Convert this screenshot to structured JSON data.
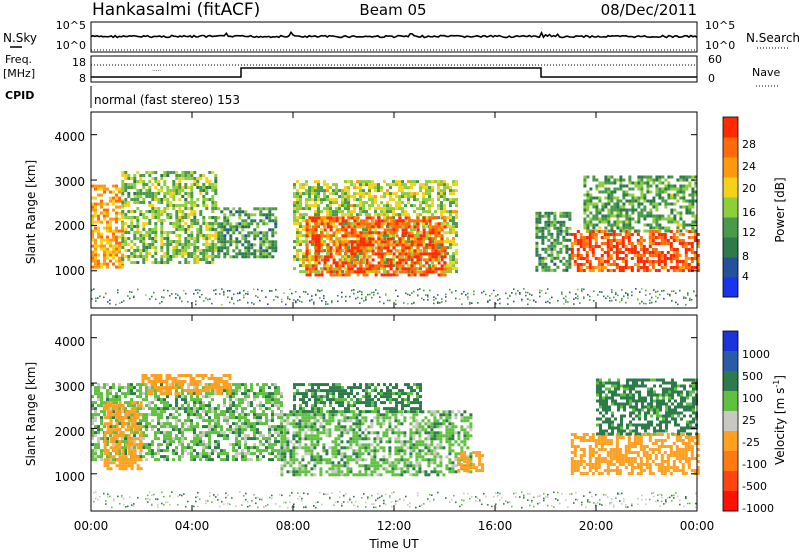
{
  "header": {
    "station": "Hankasalmi (fitACF)",
    "beam": "Beam 05",
    "date": "08/Dec/2011"
  },
  "aux": {
    "nsky_label": "N.Sky",
    "nsearch_label": "N.Search",
    "noise_ticks_left": [
      "10^5",
      "10^0"
    ],
    "noise_ticks_right": [
      "10^5",
      "10^0"
    ],
    "freq_label_1": "Freq.",
    "freq_label_2": "[MHz]",
    "freq_ticks": [
      "18",
      "8"
    ],
    "nave_ticks": [
      "60",
      "0"
    ],
    "nave_label": "Nave",
    "cpid_label": "CPID",
    "cpid_text": "normal (fast stereo) 153"
  },
  "axes": {
    "xlabel": "Time UT",
    "x_ticks": [
      "00:00",
      "04:00",
      "08:00",
      "12:00",
      "16:00",
      "20:00",
      "00:00"
    ],
    "ylabel": "Slant Range [km]",
    "y_ticks": [
      "1000",
      "2000",
      "3000",
      "4000"
    ]
  },
  "colorbars": {
    "power": {
      "label": "Power [dB]",
      "ticks": [
        "4",
        "8",
        "12",
        "16",
        "20",
        "24",
        "28"
      ]
    },
    "velocity": {
      "label_main": "Velocity [m s",
      "label_sup": "-1",
      "label_end": "]",
      "ticks": [
        "1000",
        "500",
        "100",
        "25",
        "-25",
        "-100",
        "-500",
        "-1000"
      ]
    }
  },
  "colors": {
    "power_scale": [
      "#1a33ee",
      "#24509c",
      "#2d7a4a",
      "#4a9a4a",
      "#8ccf3a",
      "#f4d21a",
      "#ff9a10",
      "#ff6a0a",
      "#ff2a00"
    ],
    "velocity_scale": [
      "#1a33dd",
      "#2a5aa8",
      "#2d7a4a",
      "#60c040",
      "#c8c8c0",
      "#ffa020",
      "#ff7a10",
      "#ff4410",
      "#ff1000"
    ]
  },
  "chart_data": [
    {
      "type": "heatmap",
      "name": "Power",
      "x_range": [
        "00:00",
        "24:00"
      ],
      "ylim": [
        180,
        4500
      ],
      "y_unit": "km",
      "value_range": [
        0,
        30
      ],
      "value_unit": "dB",
      "echo_regions": [
        {
          "t_start": 0.0,
          "t_end": 1.2,
          "r_start": 1100,
          "r_end": 2900,
          "level": 22
        },
        {
          "t_start": 1.2,
          "t_end": 5.0,
          "r_start": 1200,
          "r_end": 3200,
          "level": 14
        },
        {
          "t_start": 5.0,
          "t_end": 7.3,
          "r_start": 1300,
          "r_end": 2400,
          "level": 10
        },
        {
          "t_start": 8.0,
          "t_end": 14.5,
          "r_start": 1000,
          "r_end": 3000,
          "level": 16
        },
        {
          "t_start": 8.5,
          "t_end": 14.0,
          "r_start": 900,
          "r_end": 2200,
          "level": 28
        },
        {
          "t_start": 17.6,
          "t_end": 19.0,
          "r_start": 1000,
          "r_end": 2300,
          "level": 10
        },
        {
          "t_start": 19.0,
          "t_end": 24.0,
          "r_start": 1000,
          "r_end": 1900,
          "level": 28
        },
        {
          "t_start": 19.5,
          "t_end": 24.0,
          "r_start": 1900,
          "r_end": 3100,
          "level": 12
        }
      ]
    },
    {
      "type": "heatmap",
      "name": "Velocity",
      "x_range": [
        "00:00",
        "24:00"
      ],
      "ylim": [
        180,
        4500
      ],
      "y_unit": "km",
      "value_range": [
        -1000,
        1000
      ],
      "value_unit": "m s-1",
      "echo_regions": [
        {
          "t_start": 0.0,
          "t_end": 7.5,
          "r_start": 1300,
          "r_end": 3000,
          "level": 0
        },
        {
          "t_start": 0.5,
          "t_end": 2.0,
          "r_start": 1100,
          "r_end": 2600,
          "level": -300
        },
        {
          "t_start": 2.0,
          "t_end": 5.5,
          "r_start": 2800,
          "r_end": 3200,
          "level": -300
        },
        {
          "t_start": 7.5,
          "t_end": 15.0,
          "r_start": 1000,
          "r_end": 2400,
          "level": 0
        },
        {
          "t_start": 8.0,
          "t_end": 13.0,
          "r_start": 2400,
          "r_end": 3000,
          "level": 50
        },
        {
          "t_start": 14.5,
          "t_end": 15.5,
          "r_start": 1100,
          "r_end": 1500,
          "level": -300
        },
        {
          "t_start": 19.0,
          "t_end": 24.0,
          "r_start": 1000,
          "r_end": 1900,
          "level": -300
        },
        {
          "t_start": 20.0,
          "t_end": 24.0,
          "r_start": 1900,
          "r_end": 3100,
          "level": 50
        }
      ]
    }
  ]
}
